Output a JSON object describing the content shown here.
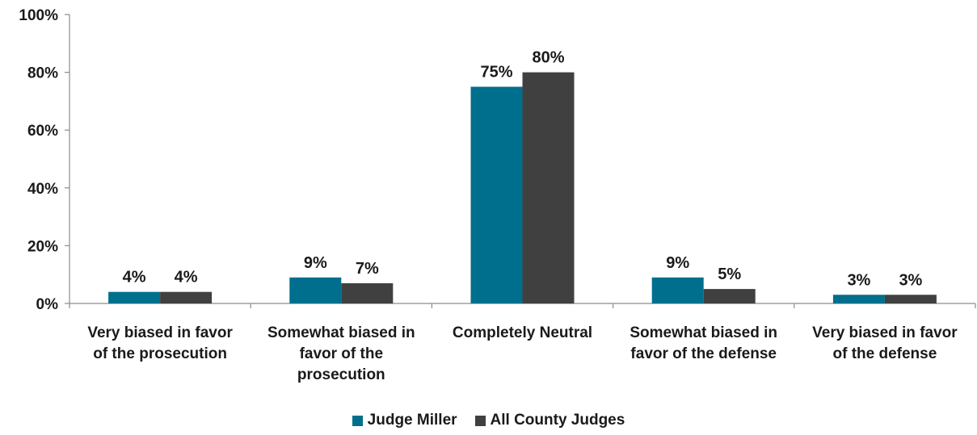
{
  "chart_data": {
    "type": "bar",
    "categories": [
      [
        "Very biased in favor",
        "of the prosecution"
      ],
      [
        "Somewhat biased in",
        "favor of the",
        "prosecution"
      ],
      [
        "Completely Neutral"
      ],
      [
        "Somewhat biased in",
        "favor of the defense"
      ],
      [
        "Very biased in favor",
        "of the defense"
      ]
    ],
    "series": [
      {
        "name": "Judge Miller",
        "color": "#006f8e",
        "values": [
          4,
          9,
          75,
          9,
          3
        ],
        "labels": [
          "4%",
          "9%",
          "75%",
          "9%",
          "3%"
        ]
      },
      {
        "name": "All County Judges",
        "color": "#404040",
        "values": [
          4,
          7,
          80,
          5,
          3
        ],
        "labels": [
          "4%",
          "7%",
          "80%",
          "5%",
          "3%"
        ]
      }
    ],
    "ylim": [
      0,
      100
    ],
    "yticks": [
      "0%",
      "20%",
      "40%",
      "60%",
      "80%",
      "100%"
    ],
    "grid": false,
    "legend_position": "bottom-center",
    "title": "",
    "xlabel": "",
    "ylabel": ""
  }
}
